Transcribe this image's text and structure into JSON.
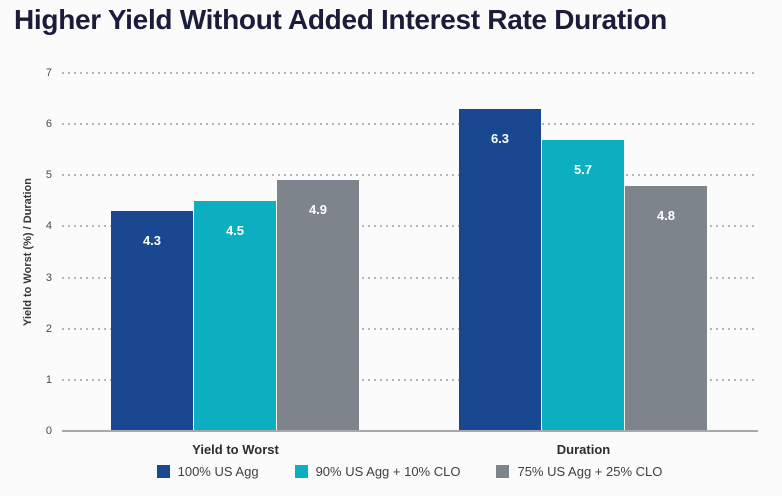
{
  "title": "Higher Yield Without Added Interest Rate Duration",
  "chart_data": {
    "type": "bar",
    "title": "Higher Yield Without Added Interest Rate Duration",
    "categories": [
      "Yield to Worst",
      "Duration"
    ],
    "series": [
      {
        "name": "100% US Agg",
        "color": "#1a4890",
        "values": [
          4.3,
          6.3
        ]
      },
      {
        "name": "90% US Agg + 10% CLO",
        "color": "#0bafbf",
        "values": [
          4.5,
          5.7
        ]
      },
      {
        "name": "75% US Agg + 25% CLO",
        "color": "#7d848c",
        "values": [
          4.9,
          4.8
        ]
      }
    ],
    "ylabel": "Yield to Worst (%) / Duration",
    "xlabel": "",
    "ylim": [
      0,
      7
    ],
    "yticks": [
      0,
      1,
      2,
      3,
      4,
      5,
      6,
      7
    ],
    "grid": "horizontal-dotted",
    "legend_position": "bottom-center",
    "value_label_style": "white bold, inside top of bar"
  },
  "colors": {
    "background": "#fbfbfc",
    "title_text": "#1a1c3a",
    "axis_line": "#a8a8ab",
    "gridline": "#b6b6b8",
    "tick_label": "#4a4a4a",
    "axis_title": "#383838",
    "category_label": "#2d2d2d",
    "legend_text": "#3f3f3f",
    "value_label": "#ffffff"
  }
}
